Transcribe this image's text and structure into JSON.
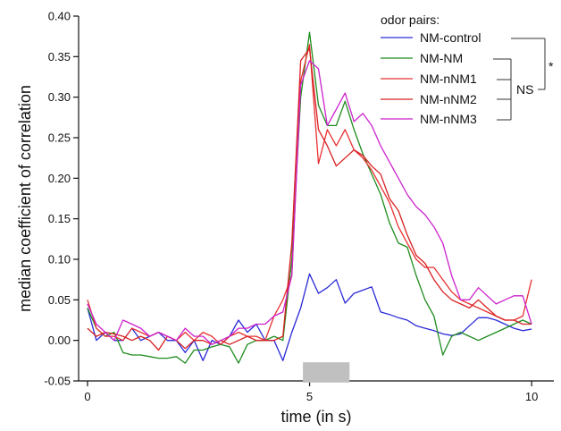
{
  "chart_data": {
    "type": "line",
    "xlabel": "time (in s)",
    "ylabel": "median coefficient of correlation",
    "xlim": [
      -0.2,
      10.5
    ],
    "ylim": [
      -0.05,
      0.4
    ],
    "x_ticks": [
      0,
      5,
      10
    ],
    "y_ticks": [
      -0.05,
      0.0,
      0.05,
      0.1,
      0.15,
      0.2,
      0.25,
      0.3,
      0.35,
      0.4
    ],
    "y_tick_labels": [
      "-0.05",
      "0.00",
      "0.05",
      "0.10",
      "0.15",
      "0.20",
      "0.25",
      "0.30",
      "0.35",
      "0.40"
    ],
    "x_tick_labels": [
      "0",
      "5",
      "10"
    ],
    "legend_title": "odor pairs:",
    "stimulus_bar": {
      "x_start": 4.85,
      "x_end": 5.9,
      "y_low": -0.052,
      "y_high": -0.027,
      "color": "#c0c0c0"
    },
    "annotations": {
      "ns_label": "NS",
      "star_label": "*"
    },
    "x": [
      0.0,
      0.2,
      0.4,
      0.6,
      0.8,
      1.0,
      1.2,
      1.4,
      1.6,
      1.8,
      2.0,
      2.2,
      2.4,
      2.6,
      2.8,
      3.0,
      3.2,
      3.4,
      3.6,
      3.8,
      4.0,
      4.2,
      4.4,
      4.6,
      4.8,
      5.0,
      5.2,
      5.4,
      5.6,
      5.8,
      6.0,
      6.2,
      6.4,
      6.6,
      6.8,
      7.0,
      7.2,
      7.4,
      7.6,
      7.8,
      8.0,
      8.2,
      8.4,
      8.6,
      8.8,
      9.0,
      9.2,
      9.4,
      9.6,
      9.8,
      10.0
    ],
    "series": [
      {
        "name": "NM-control",
        "color": "#2a2ad8",
        "values": [
          0.04,
          0.0,
          0.01,
          0.0,
          0.0,
          0.015,
          0.0,
          0.005,
          0.01,
          0.0,
          0.0,
          -0.015,
          0.0,
          -0.025,
          0.0,
          -0.005,
          0.005,
          0.025,
          0.01,
          0.02,
          0.0,
          0.0,
          -0.025,
          0.01,
          0.04,
          0.082,
          0.058,
          0.065,
          0.075,
          0.046,
          0.058,
          0.062,
          0.066,
          0.035,
          0.032,
          0.028,
          0.025,
          0.018,
          0.015,
          0.012,
          0.008,
          0.006,
          0.008,
          0.018,
          0.028,
          0.028,
          0.025,
          0.02,
          0.015,
          0.012,
          0.014
        ]
      },
      {
        "name": "NM-NM",
        "color": "#1f8c1f",
        "values": [
          0.04,
          0.015,
          0.005,
          0.01,
          -0.015,
          -0.018,
          -0.018,
          -0.02,
          -0.022,
          -0.022,
          -0.02,
          -0.028,
          -0.012,
          -0.012,
          -0.008,
          -0.005,
          -0.008,
          -0.028,
          -0.005,
          0.0,
          0.0,
          0.005,
          0.0,
          0.1,
          0.3,
          0.38,
          0.29,
          0.265,
          0.265,
          0.295,
          0.26,
          0.23,
          0.205,
          0.18,
          0.145,
          0.12,
          0.115,
          0.08,
          0.05,
          0.03,
          -0.018,
          0.005,
          0.01,
          0.005,
          0.0,
          0.005,
          0.01,
          0.015,
          0.02,
          0.025,
          0.02
        ]
      },
      {
        "name": "NM-nNM1",
        "color": "#e83030",
        "values": [
          0.05,
          0.015,
          0.005,
          0.005,
          0.0,
          0.015,
          0.01,
          0.005,
          0.01,
          0.005,
          0.0,
          0.01,
          0.0,
          0.01,
          0.005,
          -0.005,
          0.005,
          0.01,
          0.005,
          0.005,
          0.0,
          0.03,
          0.05,
          0.08,
          0.32,
          0.365,
          0.218,
          0.26,
          0.24,
          0.26,
          0.235,
          0.225,
          0.21,
          0.19,
          0.17,
          0.14,
          0.12,
          0.1,
          0.09,
          0.09,
          0.075,
          0.06,
          0.05,
          0.045,
          0.04,
          0.035,
          0.03,
          0.025,
          0.025,
          0.03,
          0.075
        ]
      },
      {
        "name": "NM-nNM2",
        "color": "#d82020",
        "values": [
          0.015,
          0.005,
          0.01,
          0.008,
          0.005,
          0.0,
          0.005,
          0.0,
          -0.012,
          0.005,
          0.0,
          -0.01,
          0.0,
          0.0,
          -0.005,
          0.0,
          -0.005,
          0.0,
          0.005,
          0.0,
          0.0,
          0.0,
          0.005,
          0.12,
          0.345,
          0.36,
          0.26,
          0.24,
          0.215,
          0.225,
          0.235,
          0.228,
          0.215,
          0.205,
          0.175,
          0.16,
          0.13,
          0.105,
          0.095,
          0.075,
          0.06,
          0.05,
          0.045,
          0.04,
          0.05,
          0.04,
          0.03,
          0.025,
          0.025,
          0.02,
          0.02
        ]
      },
      {
        "name": "NM-nNM3",
        "color": "#cc22cc",
        "values": [
          0.045,
          0.02,
          0.01,
          0.0,
          0.025,
          0.02,
          0.015,
          0.005,
          0.01,
          0.005,
          0.0,
          0.015,
          0.005,
          0.005,
          -0.005,
          0.0,
          0.005,
          0.015,
          0.015,
          0.02,
          0.02,
          0.03,
          0.035,
          0.08,
          0.315,
          0.345,
          0.335,
          0.265,
          0.285,
          0.305,
          0.27,
          0.28,
          0.265,
          0.24,
          0.22,
          0.2,
          0.18,
          0.165,
          0.155,
          0.14,
          0.12,
          0.08,
          0.05,
          0.05,
          0.065,
          0.055,
          0.045,
          0.05,
          0.055,
          0.055,
          0.02
        ]
      }
    ]
  }
}
